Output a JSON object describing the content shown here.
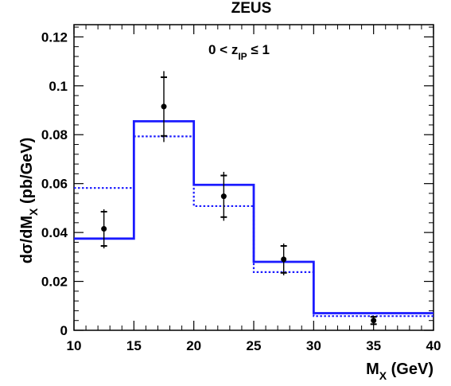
{
  "chart_data": {
    "type": "line",
    "title": "ZEUS",
    "annotation": {
      "prefix": "0 < z",
      "sub": "IP",
      "suffix": " ≤ 1"
    },
    "xlabel": {
      "main": "M",
      "sub": "X",
      "suffix": " (GeV)"
    },
    "ylabel": {
      "prefix": "dσ/dM",
      "sub": "X",
      "suffix": " (pb/GeV)"
    },
    "xlim": [
      10,
      40
    ],
    "ylim": [
      0,
      0.125
    ],
    "xticks": [
      10,
      15,
      20,
      25,
      30,
      35,
      40
    ],
    "yticks": [
      0,
      0.02,
      0.04,
      0.06,
      0.08,
      0.1,
      0.12
    ],
    "ytick_labels": [
      "0",
      "0.02",
      "0.04",
      "0.06",
      "0.08",
      "0.1",
      "0.12"
    ],
    "bin_edges": [
      10,
      15,
      20,
      25,
      30,
      40
    ],
    "series": [
      {
        "style": "solid-histogram",
        "color": "#1a1aff",
        "values": [
          0.0375,
          0.0855,
          0.0595,
          0.028,
          0.007
        ]
      },
      {
        "style": "dotted-histogram",
        "color": "#1a1aff",
        "values": [
          0.0582,
          0.0793,
          0.0508,
          0.0238,
          0.0058
        ]
      },
      {
        "style": "points-with-errors",
        "color": "#000000",
        "x": [
          12.5,
          17.5,
          22.5,
          27.5,
          35.0
        ],
        "y": [
          0.0415,
          0.0915,
          0.0548,
          0.029,
          0.004
        ],
        "err_stat": [
          0.007,
          0.012,
          0.0085,
          0.0055,
          0.0015
        ],
        "err_tot": [
          0.008,
          0.0145,
          0.01,
          0.0065,
          0.002
        ]
      }
    ],
    "grid": false
  }
}
